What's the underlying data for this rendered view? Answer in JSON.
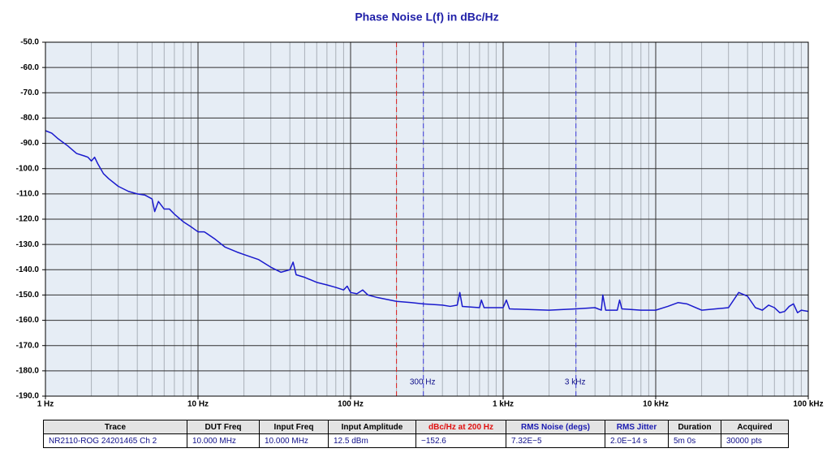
{
  "chart_data": {
    "type": "line",
    "title": "Phase Noise L(f) in dBc/Hz",
    "xscale": "log",
    "xlim": [
      1,
      100000
    ],
    "ylim": [
      -190,
      -50
    ],
    "xticks": [
      {
        "value": 1,
        "label": "1 Hz"
      },
      {
        "value": 10,
        "label": "10 Hz"
      },
      {
        "value": 100,
        "label": "100 Hz"
      },
      {
        "value": 1000,
        "label": "1 kHz"
      },
      {
        "value": 10000,
        "label": "10 kHz"
      },
      {
        "value": 100000,
        "label": "100 kHz"
      }
    ],
    "xminorticks": [
      2,
      3,
      4,
      5,
      6,
      7,
      8,
      9,
      20,
      30,
      40,
      50,
      60,
      70,
      80,
      90,
      200,
      300,
      400,
      500,
      600,
      700,
      800,
      900,
      2000,
      3000,
      4000,
      5000,
      6000,
      7000,
      8000,
      9000,
      20000,
      30000,
      40000,
      50000,
      60000,
      70000,
      80000,
      90000
    ],
    "yticks": [
      {
        "value": -50,
        "label": "-50.0"
      },
      {
        "value": -60,
        "label": "-60.0"
      },
      {
        "value": -70,
        "label": "-70.0"
      },
      {
        "value": -80,
        "label": "-80.0"
      },
      {
        "value": -90,
        "label": "-90.0"
      },
      {
        "value": -100,
        "label": "-100.0"
      },
      {
        "value": -110,
        "label": "-110.0"
      },
      {
        "value": -120,
        "label": "-120.0"
      },
      {
        "value": -130,
        "label": "-130.0"
      },
      {
        "value": -140,
        "label": "-140.0"
      },
      {
        "value": -150,
        "label": "-150.0"
      },
      {
        "value": -160,
        "label": "-160.0"
      },
      {
        "value": -170,
        "label": "-170.0"
      },
      {
        "value": -180,
        "label": "-180.0"
      },
      {
        "value": -190,
        "label": "-190.0"
      }
    ],
    "grid": true,
    "markers": [
      {
        "x": 200,
        "color": "#e02020"
      },
      {
        "x": 300,
        "label": "300 Hz",
        "color": "#4040e0"
      },
      {
        "x": 3000,
        "label": "3 kHz",
        "color": "#4040e0"
      }
    ],
    "series": [
      {
        "color": "#1a1acd",
        "x": [
          1,
          1.1,
          1.2,
          1.4,
          1.6,
          1.8,
          1.9,
          2.0,
          2.1,
          2.2,
          2.4,
          2.6,
          3,
          3.5,
          4,
          4.5,
          5,
          5.2,
          5.5,
          6,
          6.5,
          7,
          8,
          9,
          10,
          11,
          13,
          15,
          18,
          20,
          25,
          30,
          35,
          40,
          42,
          44,
          50,
          60,
          70,
          80,
          90,
          95,
          100,
          110,
          120,
          130,
          150,
          200,
          250,
          300,
          400,
          450,
          500,
          520,
          540,
          700,
          720,
          750,
          1000,
          1050,
          1100,
          2000,
          3000,
          4000,
          4400,
          4500,
          4700,
          5600,
          5800,
          6000,
          8000,
          10000,
          12000,
          14000,
          16000,
          20000,
          30000,
          35000,
          40000,
          45000,
          50000,
          55000,
          60000,
          65000,
          70000,
          75000,
          80000,
          85000,
          90000,
          100000
        ],
        "values": [
          -85,
          -86,
          -88,
          -91,
          -94,
          -95,
          -95.5,
          -97,
          -95.5,
          -98,
          -102,
          -104,
          -107,
          -109,
          -110,
          -110.5,
          -112,
          -117,
          -113,
          -116,
          -116,
          -118,
          -121,
          -123,
          -125,
          -125,
          -128,
          -131,
          -133,
          -134,
          -136,
          -139,
          -141,
          -140,
          -137,
          -142,
          -143,
          -145,
          -146,
          -147,
          -148,
          -146.5,
          -149,
          -149.5,
          -148,
          -150,
          -151,
          -152.5,
          -153,
          -153.5,
          -154,
          -154.5,
          -154,
          -149,
          -154.5,
          -155,
          -152,
          -155,
          -155,
          -152,
          -155.5,
          -156,
          -155.5,
          -155,
          -156,
          -150,
          -156,
          -156,
          -152,
          -155.5,
          -156,
          -156,
          -154.5,
          -153,
          -153.5,
          -156,
          -155,
          -149,
          -150.5,
          -155,
          -156,
          -154,
          -155,
          -157,
          -156.5,
          -154.5,
          -153.5,
          -157,
          -156,
          -156.5
        ]
      }
    ]
  },
  "table": {
    "headers": [
      "Trace",
      "DUT Freq",
      "Input Freq",
      "Input Amplitude",
      "dBc/Hz at 200 Hz",
      "RMS Noise (degs)",
      "RMS Jitter",
      "Duration",
      "Acquired"
    ],
    "rows": [
      [
        "NR2110-ROG 24201465  Ch 2",
        "10.000 MHz",
        "10.000 MHz",
        "12.5 dBm",
        "−152.6",
        "7.32E−5",
        "2.0E−14 s",
        "5m 0s",
        "30000 pts"
      ]
    ]
  }
}
